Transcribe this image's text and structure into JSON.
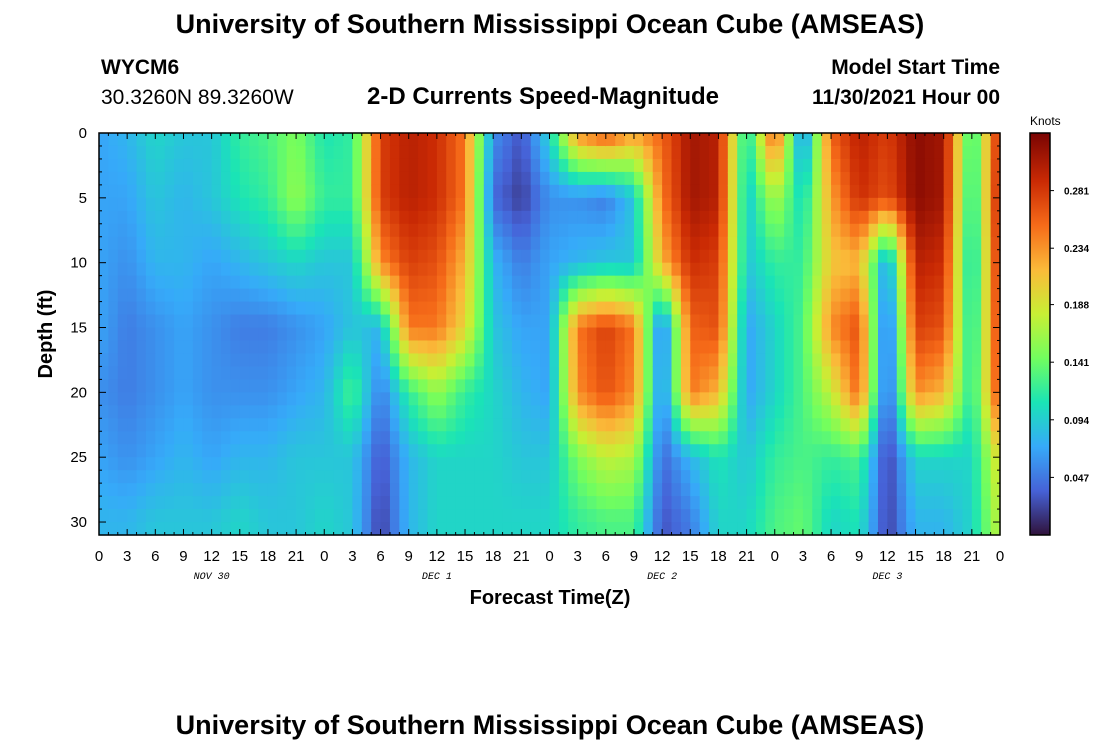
{
  "header": {
    "title": "University of Southern Mississippi Ocean Cube (AMSEAS)",
    "station_id": "WYCM6",
    "coords": "30.3260N  89.3260W",
    "subtitle": "2-D Currents Speed-Magnitude",
    "model_start_label": "Model Start Time",
    "model_start_value": "11/30/2021 Hour 00",
    "footer_title": "University of Southern Mississippi Ocean Cube (AMSEAS)"
  },
  "chart_data": {
    "type": "heatmap",
    "title": "2-D Currents Speed-Magnitude",
    "xlabel": "Forecast Time(Z)",
    "ylabel": "Depth (ft)",
    "x_tick_labels": [
      "0",
      "3",
      "6",
      "9",
      "12",
      "15",
      "18",
      "21",
      "0",
      "3",
      "6",
      "9",
      "12",
      "15",
      "18",
      "21",
      "0",
      "3",
      "6",
      "9",
      "12",
      "15",
      "18",
      "21",
      "0",
      "3",
      "6",
      "9",
      "12",
      "15",
      "18",
      "21",
      "0"
    ],
    "x_day_labels": [
      "NOV 30",
      "DEC 1",
      "DEC 2",
      "DEC 3"
    ],
    "x_range_hours": [
      0,
      96
    ],
    "y_tick_labels": [
      "0",
      "5",
      "10",
      "15",
      "20",
      "25",
      "30"
    ],
    "y_range_ft": [
      0,
      31
    ],
    "y_reversed": true,
    "colorbar": {
      "unit": "Knots",
      "range": [
        0.0,
        0.328
      ],
      "tick_labels": [
        "0.281",
        "0.234",
        "0.188",
        "0.141",
        "0.094",
        "0.047"
      ],
      "tick_values": [
        0.281,
        0.234,
        0.188,
        0.141,
        0.094,
        0.047
      ],
      "colors": [
        "#30123b",
        "#4662d7",
        "#36aaf9",
        "#1ae4b6",
        "#72fe5e",
        "#c8ef34",
        "#faba39",
        "#f66b19",
        "#ca2a04",
        "#7a0403"
      ]
    },
    "speed_knots_by_hour": {
      "note_hours": [
        0,
        3,
        6,
        9,
        12,
        15,
        18,
        21,
        24,
        27,
        30,
        33,
        36,
        39,
        42,
        45,
        48,
        51,
        54,
        57,
        60,
        63,
        66,
        69,
        72,
        75,
        78,
        81,
        84,
        87,
        90,
        93,
        96
      ],
      "depth_ft": [
        0,
        5,
        10,
        15,
        20,
        25,
        30
      ],
      "values": [
        [
          0.07,
          0.07,
          0.07,
          0.07,
          0.06,
          0.07,
          0.08
        ],
        [
          0.08,
          0.07,
          0.06,
          0.05,
          0.05,
          0.06,
          0.08
        ],
        [
          0.1,
          0.09,
          0.08,
          0.06,
          0.06,
          0.07,
          0.09
        ],
        [
          0.09,
          0.08,
          0.08,
          0.07,
          0.07,
          0.08,
          0.09
        ],
        [
          0.09,
          0.09,
          0.07,
          0.06,
          0.06,
          0.07,
          0.09
        ],
        [
          0.12,
          0.11,
          0.08,
          0.05,
          0.06,
          0.08,
          0.1
        ],
        [
          0.13,
          0.12,
          0.09,
          0.05,
          0.06,
          0.08,
          0.09
        ],
        [
          0.15,
          0.16,
          0.1,
          0.06,
          0.07,
          0.09,
          0.09
        ],
        [
          0.11,
          0.12,
          0.09,
          0.07,
          0.08,
          0.09,
          0.1
        ],
        [
          0.12,
          0.12,
          0.09,
          0.09,
          0.13,
          0.09,
          0.09
        ],
        [
          0.28,
          0.28,
          0.24,
          0.08,
          0.05,
          0.03,
          0.02
        ],
        [
          0.3,
          0.3,
          0.28,
          0.25,
          0.12,
          0.08,
          0.08
        ],
        [
          0.29,
          0.29,
          0.27,
          0.25,
          0.16,
          0.1,
          0.1
        ],
        [
          0.25,
          0.25,
          0.22,
          0.2,
          0.12,
          0.1,
          0.1
        ],
        [
          0.06,
          0.04,
          0.08,
          0.09,
          0.1,
          0.1,
          0.1
        ],
        [
          0.03,
          0.02,
          0.05,
          0.07,
          0.08,
          0.09,
          0.1
        ],
        [
          0.1,
          0.06,
          0.07,
          0.07,
          0.07,
          0.09,
          0.1
        ],
        [
          0.24,
          0.06,
          0.08,
          0.25,
          0.24,
          0.15,
          0.12
        ],
        [
          0.27,
          0.05,
          0.09,
          0.28,
          0.27,
          0.18,
          0.13
        ],
        [
          0.23,
          0.09,
          0.09,
          0.25,
          0.24,
          0.17,
          0.13
        ],
        [
          0.26,
          0.25,
          0.22,
          0.04,
          0.05,
          0.04,
          0.03
        ],
        [
          0.31,
          0.31,
          0.29,
          0.26,
          0.25,
          0.08,
          0.05
        ],
        [
          0.3,
          0.3,
          0.28,
          0.27,
          0.22,
          0.11,
          0.1
        ],
        [
          0.1,
          0.09,
          0.09,
          0.07,
          0.07,
          0.09,
          0.1
        ],
        [
          0.27,
          0.17,
          0.12,
          0.1,
          0.1,
          0.12,
          0.13
        ],
        [
          0.05,
          0.1,
          0.12,
          0.13,
          0.13,
          0.13,
          0.14
        ],
        [
          0.26,
          0.23,
          0.21,
          0.24,
          0.18,
          0.12,
          0.1
        ],
        [
          0.3,
          0.29,
          0.22,
          0.27,
          0.26,
          0.13,
          0.11
        ],
        [
          0.28,
          0.27,
          0.06,
          0.03,
          0.03,
          0.02,
          0.02
        ],
        [
          0.32,
          0.32,
          0.3,
          0.28,
          0.24,
          0.1,
          0.08
        ],
        [
          0.31,
          0.31,
          0.29,
          0.27,
          0.22,
          0.1,
          0.08
        ],
        [
          0.11,
          0.1,
          0.09,
          0.1,
          0.11,
          0.1,
          0.1
        ],
        [
          0.3,
          0.31,
          0.3,
          0.29,
          0.28,
          0.2,
          0.18
        ]
      ]
    }
  }
}
